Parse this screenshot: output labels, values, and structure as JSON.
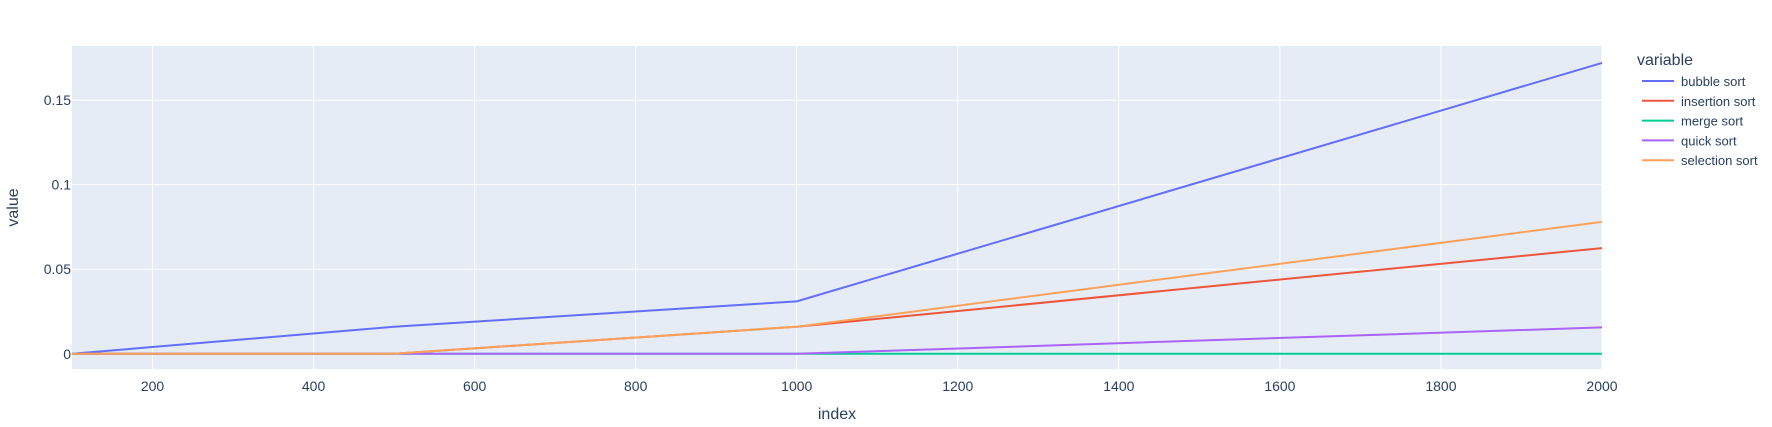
{
  "chart_data": {
    "type": "line",
    "title": "",
    "xlabel": "index",
    "ylabel": "value",
    "xlim": [
      100,
      2000
    ],
    "ylim": [
      -0.009,
      0.182
    ],
    "x_ticks": [
      200,
      400,
      600,
      800,
      1000,
      1200,
      1400,
      1600,
      1800,
      2000
    ],
    "y_ticks": [
      0,
      0.05,
      0.1,
      0.15
    ],
    "y_tick_labels": [
      "0",
      "0.05",
      "0.1",
      "0.15"
    ],
    "grid": true,
    "background": "#e5ecf6",
    "legend": {
      "title": "variable",
      "placement": "right"
    },
    "x": [
      100,
      500,
      1000,
      2000
    ],
    "series": [
      {
        "name": "bubble sort",
        "color": "#636efa",
        "values": [
          0.0,
          0.016,
          0.031,
          0.172
        ]
      },
      {
        "name": "insertion sort",
        "color": "#ef553b",
        "values": [
          0.0,
          0.0,
          0.016,
          0.0625
        ]
      },
      {
        "name": "merge sort",
        "color": "#00cc96",
        "values": [
          0.0,
          0.0,
          0.0,
          0.0
        ]
      },
      {
        "name": "quick sort",
        "color": "#ab63fa",
        "values": [
          0.0,
          0.0,
          0.0,
          0.0156
        ]
      },
      {
        "name": "selection sort",
        "color": "#ffa15a",
        "values": [
          0.0,
          0.0,
          0.016,
          0.078
        ]
      }
    ]
  }
}
